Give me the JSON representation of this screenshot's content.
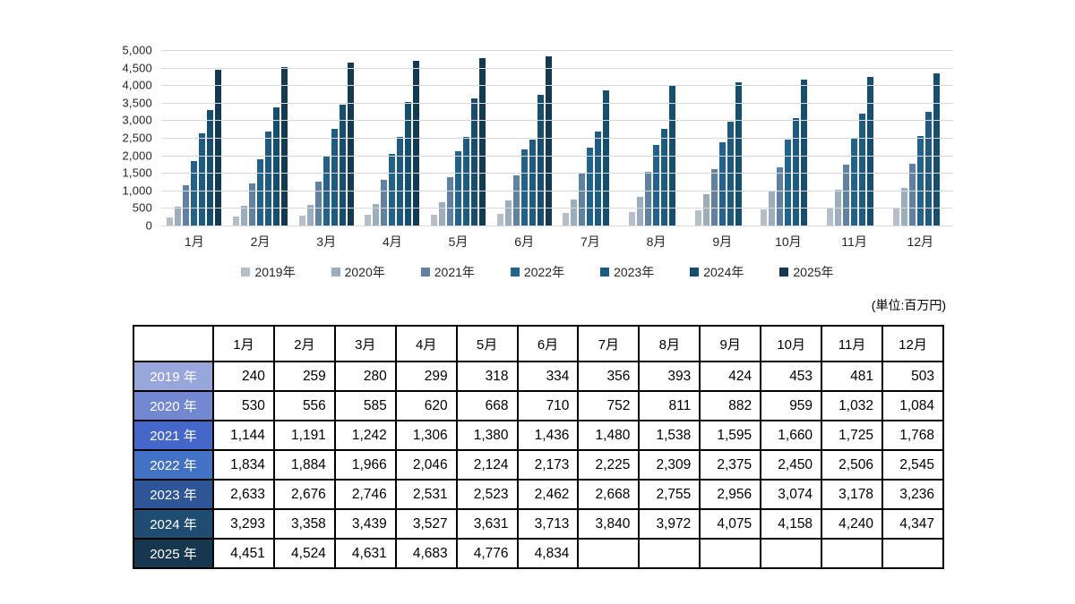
{
  "unit_note": "(単位:百万円)",
  "chart_data": {
    "type": "bar",
    "title": "",
    "xlabel": "",
    "ylabel": "",
    "ylim": [
      0,
      5000
    ],
    "ytick_step": 500,
    "yticks": [
      "5,000",
      "4,500",
      "4,000",
      "3,500",
      "3,000",
      "2,500",
      "2,000",
      "1,500",
      "1,000",
      "500",
      "0"
    ],
    "grid": true,
    "gridline_color": "#d9d9d9",
    "legend_position": "bottom",
    "categories": [
      "1月",
      "2月",
      "3月",
      "4月",
      "5月",
      "6月",
      "7月",
      "8月",
      "9月",
      "10月",
      "11月",
      "12月"
    ],
    "series": [
      {
        "name": "2019年",
        "color": "#b6bfc9",
        "values": [
          240,
          259,
          280,
          299,
          318,
          334,
          356,
          393,
          424,
          453,
          481,
          503
        ]
      },
      {
        "name": "2020年",
        "color": "#9cadbe",
        "values": [
          530,
          556,
          585,
          620,
          668,
          710,
          752,
          811,
          882,
          959,
          1032,
          1084
        ]
      },
      {
        "name": "2021年",
        "color": "#5f82a2",
        "values": [
          1144,
          1191,
          1242,
          1306,
          1380,
          1436,
          1480,
          1538,
          1595,
          1660,
          1725,
          1768
        ]
      },
      {
        "name": "2022年",
        "color": "#21638c",
        "values": [
          1834,
          1884,
          1966,
          2046,
          2124,
          2173,
          2225,
          2309,
          2375,
          2450,
          2506,
          2545
        ]
      },
      {
        "name": "2023年",
        "color": "#1d5b83",
        "values": [
          2633,
          2676,
          2746,
          2531,
          2523,
          2462,
          2668,
          2755,
          2956,
          3074,
          3178,
          3236
        ]
      },
      {
        "name": "2024年",
        "color": "#154e6f",
        "values": [
          3293,
          3358,
          3439,
          3527,
          3631,
          3713,
          3840,
          3972,
          4075,
          4158,
          4240,
          4347
        ]
      },
      {
        "name": "2025年",
        "color": "#123a52",
        "values": [
          4451,
          4524,
          4631,
          4683,
          4776,
          4834,
          null,
          null,
          null,
          null,
          null,
          null
        ]
      }
    ]
  },
  "table": {
    "corner_label": "",
    "columns": [
      "1月",
      "2月",
      "3月",
      "4月",
      "5月",
      "6月",
      "7月",
      "8月",
      "9月",
      "10月",
      "11月",
      "12月"
    ],
    "rows": [
      {
        "label": "2019 年",
        "color": "#99a6db",
        "values": [
          240,
          259,
          280,
          299,
          318,
          334,
          356,
          393,
          424,
          453,
          481,
          503
        ]
      },
      {
        "label": "2020 年",
        "color": "#7289d1",
        "values": [
          530,
          556,
          585,
          620,
          668,
          710,
          752,
          811,
          882,
          959,
          1032,
          1084
        ]
      },
      {
        "label": "2021 年",
        "color": "#4567c9",
        "values": [
          1144,
          1191,
          1242,
          1306,
          1380,
          1436,
          1480,
          1538,
          1595,
          1660,
          1725,
          1768
        ]
      },
      {
        "label": "2022 年",
        "color": "#4272c4",
        "values": [
          1834,
          1884,
          1966,
          2046,
          2124,
          2173,
          2225,
          2309,
          2375,
          2450,
          2506,
          2545
        ]
      },
      {
        "label": "2023 年",
        "color": "#2e5596",
        "values": [
          2633,
          2676,
          2746,
          2531,
          2523,
          2462,
          2668,
          2755,
          2956,
          3074,
          3178,
          3236
        ]
      },
      {
        "label": "2024 年",
        "color": "#1f4d72",
        "values": [
          3293,
          3358,
          3439,
          3527,
          3631,
          3713,
          3840,
          3972,
          4075,
          4158,
          4240,
          4347
        ]
      },
      {
        "label": "2025 年",
        "color": "#16374e",
        "values": [
          4451,
          4524,
          4631,
          4683,
          4776,
          4834,
          null,
          null,
          null,
          null,
          null,
          null
        ]
      }
    ]
  }
}
